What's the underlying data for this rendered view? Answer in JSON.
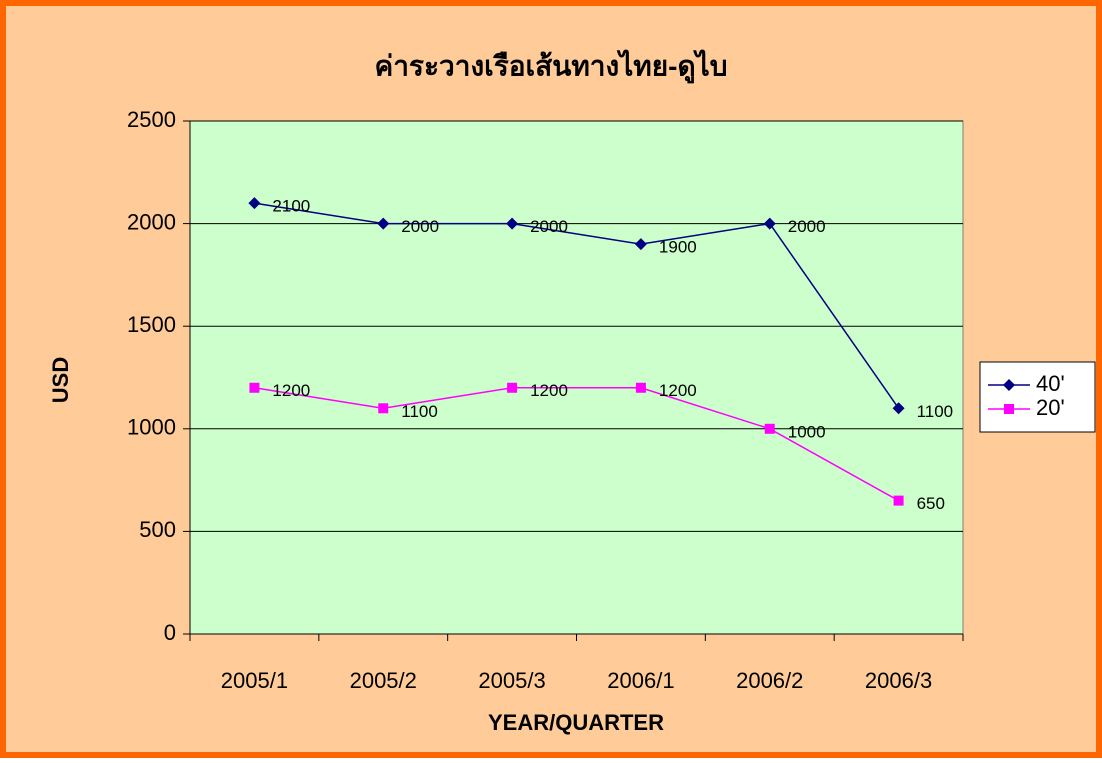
{
  "chart_data": {
    "type": "line",
    "title": "ค่าระวางเรือเส้นทางไทย-ดูไบ",
    "x_label": "YEAR/QUARTER",
    "y_label": "USD",
    "categories": [
      "2005/1",
      "2005/2",
      "2005/3",
      "2006/1",
      "2006/2",
      "2006/3"
    ],
    "series": [
      {
        "name": "40'",
        "color": "#000080",
        "marker": "diamond",
        "values": [
          2100,
          2000,
          2000,
          1900,
          2000,
          1100
        ]
      },
      {
        "name": "20'",
        "color": "#FF00FF",
        "marker": "square",
        "values": [
          1200,
          1100,
          1200,
          1200,
          1000,
          650
        ]
      }
    ],
    "ylim": [
      0,
      2500
    ],
    "yticks": [
      0,
      500,
      1000,
      1500,
      2000,
      2500
    ],
    "grid": true,
    "legend": "right",
    "data_labels": true
  }
}
